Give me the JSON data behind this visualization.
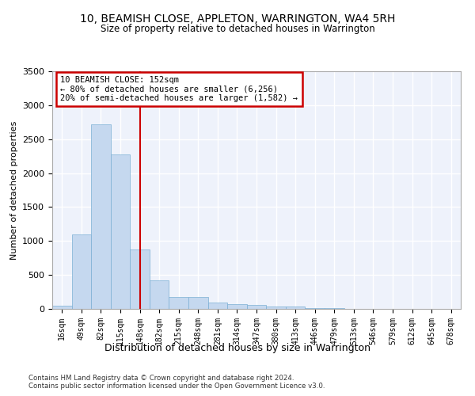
{
  "title": "10, BEAMISH CLOSE, APPLETON, WARRINGTON, WA4 5RH",
  "subtitle": "Size of property relative to detached houses in Warrington",
  "xlabel": "Distribution of detached houses by size in Warrington",
  "ylabel": "Number of detached properties",
  "categories": [
    "16sqm",
    "49sqm",
    "82sqm",
    "115sqm",
    "148sqm",
    "182sqm",
    "215sqm",
    "248sqm",
    "281sqm",
    "314sqm",
    "347sqm",
    "380sqm",
    "413sqm",
    "446sqm",
    "479sqm",
    "513sqm",
    "546sqm",
    "579sqm",
    "612sqm",
    "645sqm",
    "678sqm"
  ],
  "values": [
    50,
    1100,
    2720,
    2280,
    880,
    420,
    170,
    170,
    90,
    65,
    55,
    35,
    30,
    15,
    8,
    5,
    3,
    2,
    1,
    1,
    0
  ],
  "bar_color": "#c5d8ef",
  "bar_edgecolor": "#7bafd4",
  "vline_x_index": 4,
  "vline_color": "#cc0000",
  "annotation_text": "10 BEAMISH CLOSE: 152sqm\n← 80% of detached houses are smaller (6,256)\n20% of semi-detached houses are larger (1,582) →",
  "ylim": [
    0,
    3500
  ],
  "yticks": [
    0,
    500,
    1000,
    1500,
    2000,
    2500,
    3000,
    3500
  ],
  "background_color": "#eef2fb",
  "grid_color": "#ffffff",
  "footer1": "Contains HM Land Registry data © Crown copyright and database right 2024.",
  "footer2": "Contains public sector information licensed under the Open Government Licence v3.0."
}
